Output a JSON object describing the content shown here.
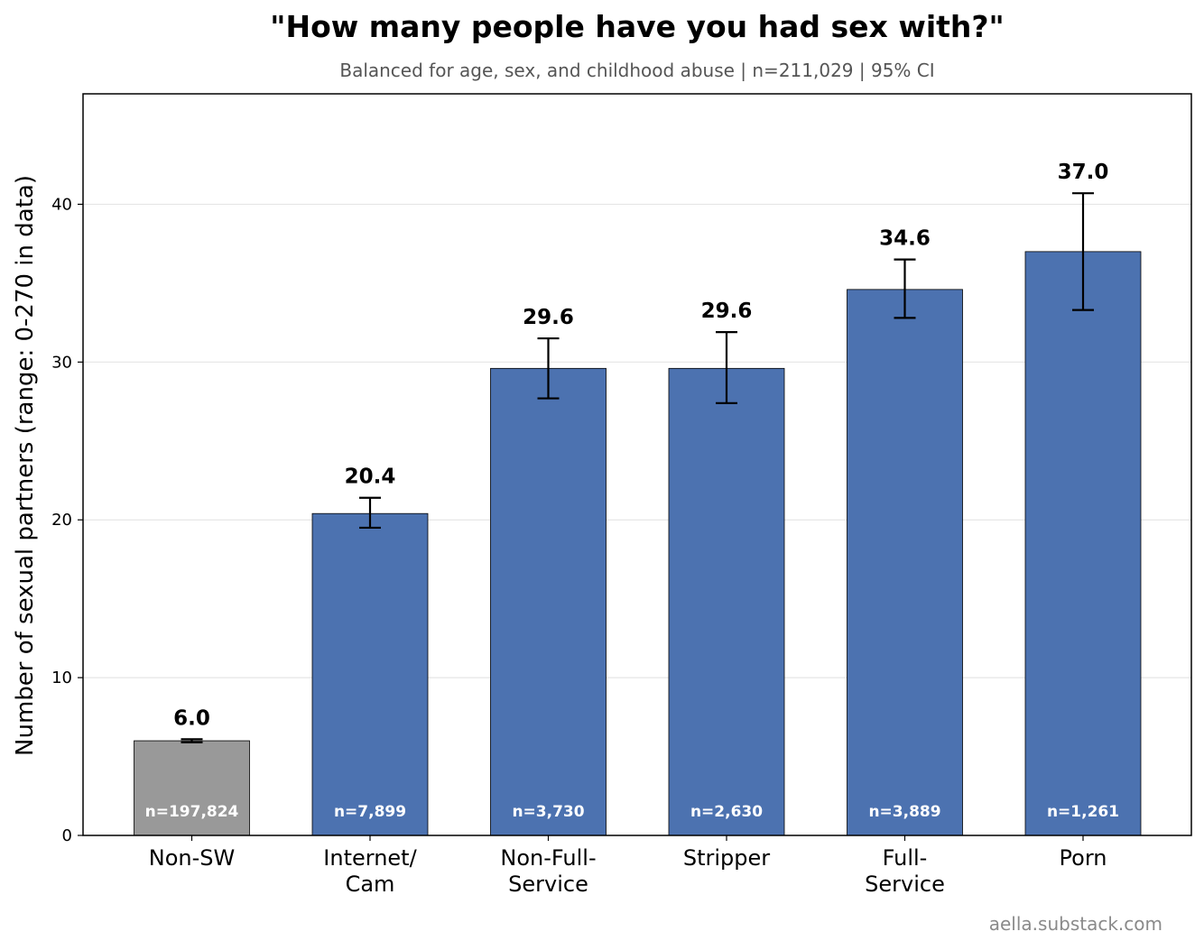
{
  "chart_data": {
    "type": "bar",
    "title": "\"How many people have you had sex with?\"",
    "subtitle": "Balanced for age, sex, and childhood abuse  |  n=211,029  |  95% CI",
    "ylabel": "Number of sexual partners  (range: 0-270 in data)",
    "xlabel": "",
    "ylim": [
      0,
      47
    ],
    "yticks": [
      0,
      10,
      20,
      30,
      40
    ],
    "grid": true,
    "categories": [
      [
        "Non-SW"
      ],
      [
        "Internet/",
        "Cam"
      ],
      [
        "Non-Full-",
        "Service"
      ],
      [
        "Stripper"
      ],
      [
        "Full-",
        "Service"
      ],
      [
        "Porn"
      ]
    ],
    "values": [
      6.0,
      20.4,
      29.6,
      29.6,
      34.6,
      37.0
    ],
    "value_labels": [
      "6.0",
      "20.4",
      "29.6",
      "29.6",
      "34.6",
      "37.0"
    ],
    "ci_low": [
      5.9,
      19.5,
      27.7,
      27.4,
      32.8,
      33.3
    ],
    "ci_high": [
      6.1,
      21.4,
      31.5,
      31.9,
      36.5,
      40.7
    ],
    "counts": [
      "n=197,824",
      "n=7,899",
      "n=3,730",
      "n=2,630",
      "n=3,889",
      "n=1,261"
    ],
    "colors": [
      "#999999",
      "#4c72b0",
      "#4c72b0",
      "#4c72b0",
      "#4c72b0",
      "#4c72b0"
    ]
  },
  "watermark": "aella.substack.com"
}
